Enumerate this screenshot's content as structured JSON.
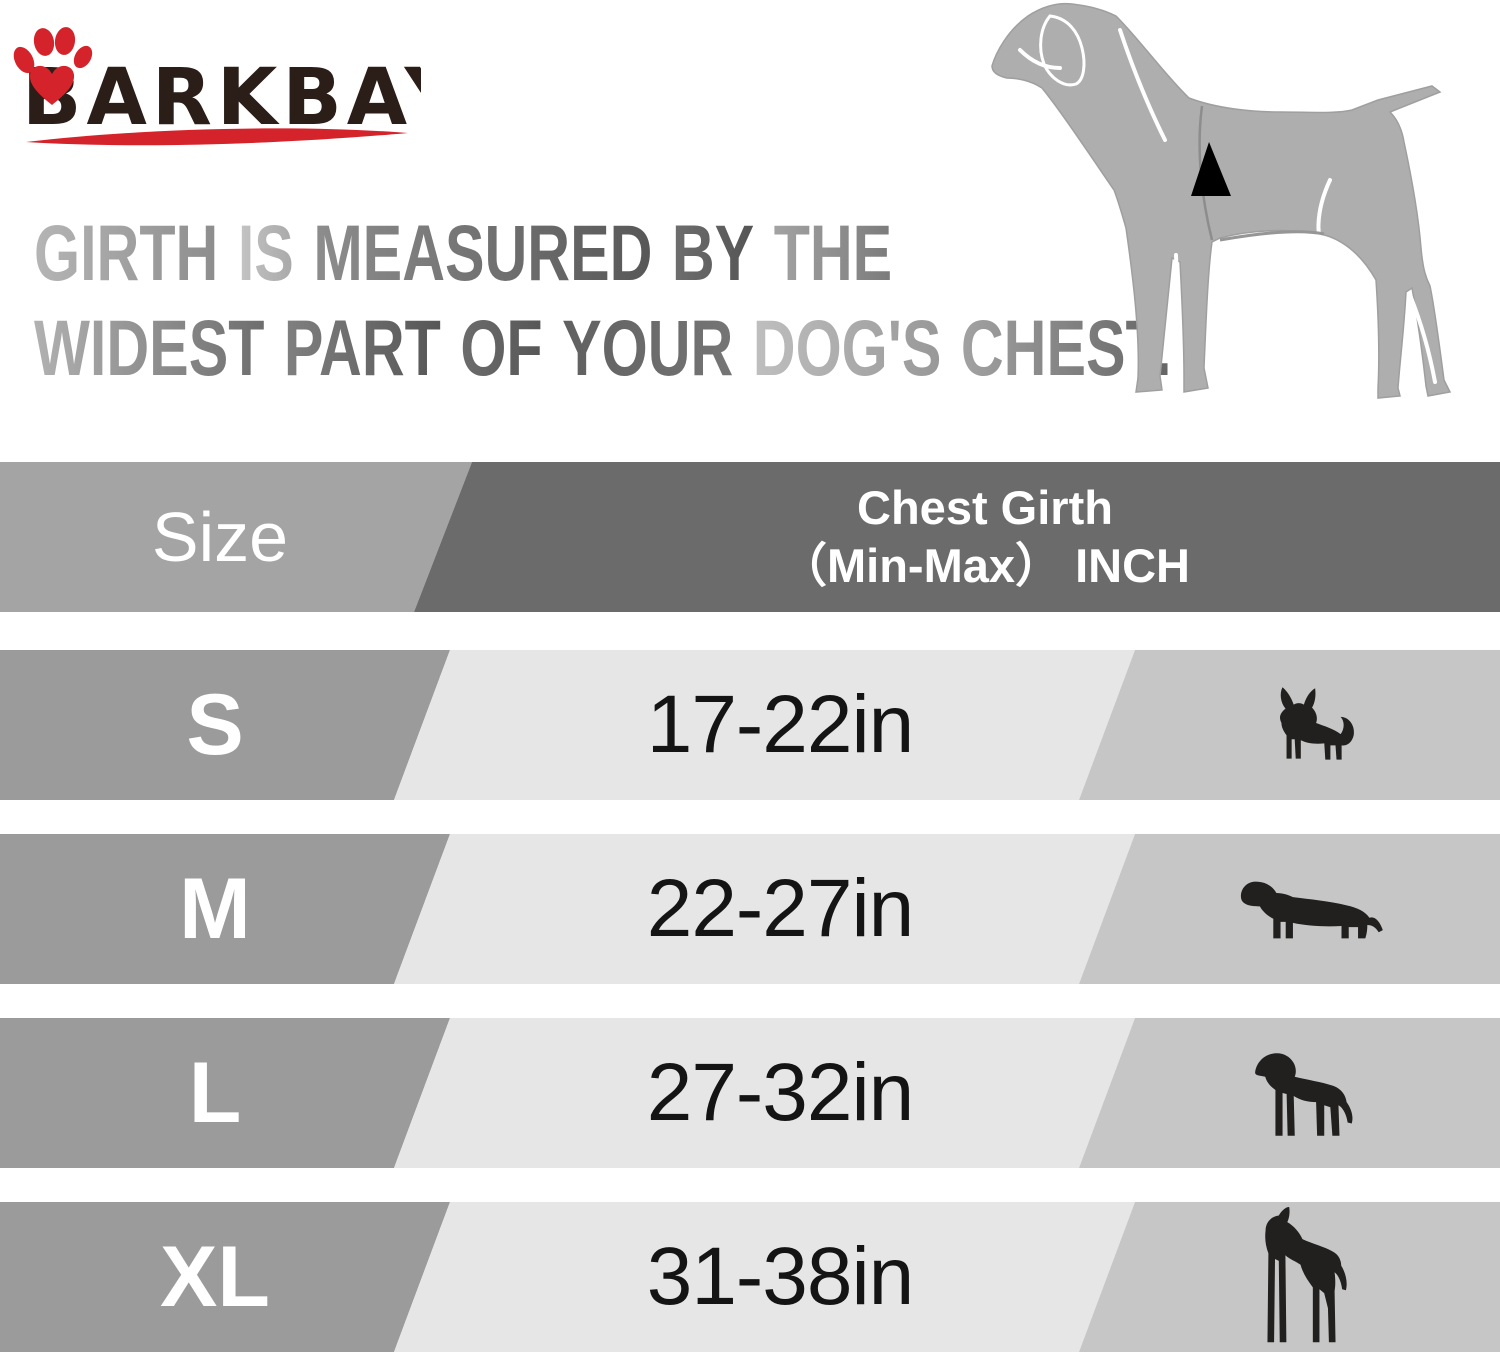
{
  "brand": {
    "name": "BARKBAY"
  },
  "heading": {
    "lines": [
      {
        "words": [
          {
            "t": "GIRTH",
            "c1": "#b5b5b5",
            "c2": "#8d8d8d"
          },
          {
            "t": "IS",
            "c1": "#c4c4c4",
            "c2": "#a9a9a9"
          },
          {
            "t": "MEASURED",
            "c1": "#8d8d8d",
            "c2": "#575757"
          },
          {
            "t": "BY",
            "c1": "#6e6e6e",
            "c2": "#545454"
          },
          {
            "t": "THE",
            "c1": "#a3a3a3",
            "c2": "#7b7b7b"
          }
        ]
      },
      {
        "words": [
          {
            "t": "WIDEST",
            "c1": "#b1b1b1",
            "c2": "#6e6e6e"
          },
          {
            "t": "PART",
            "c1": "#808080",
            "c2": "#565656"
          },
          {
            "t": "OF",
            "c1": "#6c6c6c",
            "c2": "#575757"
          },
          {
            "t": "YOUR",
            "c1": "#606060",
            "c2": "#757575"
          },
          {
            "t": "DOG'S",
            "c1": "#bfbfbf",
            "c2": "#989898"
          },
          {
            "t": "CHEST.",
            "c1": "#a2a2a2",
            "c2": "#646464"
          }
        ]
      }
    ]
  },
  "diagram": {
    "icon": "measuring-dog-silhouette",
    "marker": "chest-arrow"
  },
  "table": {
    "header": {
      "size": "Size",
      "girth_line1": "Chest Girth",
      "girth_line2": "（Min-Max）  INCH"
    },
    "rows": [
      {
        "size": "S",
        "girth": "17-22in",
        "icon": "chihuahua-icon"
      },
      {
        "size": "M",
        "girth": "22-27in",
        "icon": "dachshund-icon"
      },
      {
        "size": "L",
        "girth": "27-32in",
        "icon": "labrador-icon"
      },
      {
        "size": "XL",
        "girth": "31-38in",
        "icon": "great-dane-icon"
      }
    ]
  },
  "colors": {
    "accent_red": "#d4232a",
    "logo_text": "#2b1d18",
    "header_left_bg": "#a4a4a4",
    "header_right_bg": "#6b6b6b",
    "row_left_bg": "#9b9b9b",
    "row_mid_bg": "#e6e6e6",
    "row_right_bg": "#c6c6c6",
    "dog_silhouette": "#aeaeae",
    "icon_black": "#22201f"
  }
}
